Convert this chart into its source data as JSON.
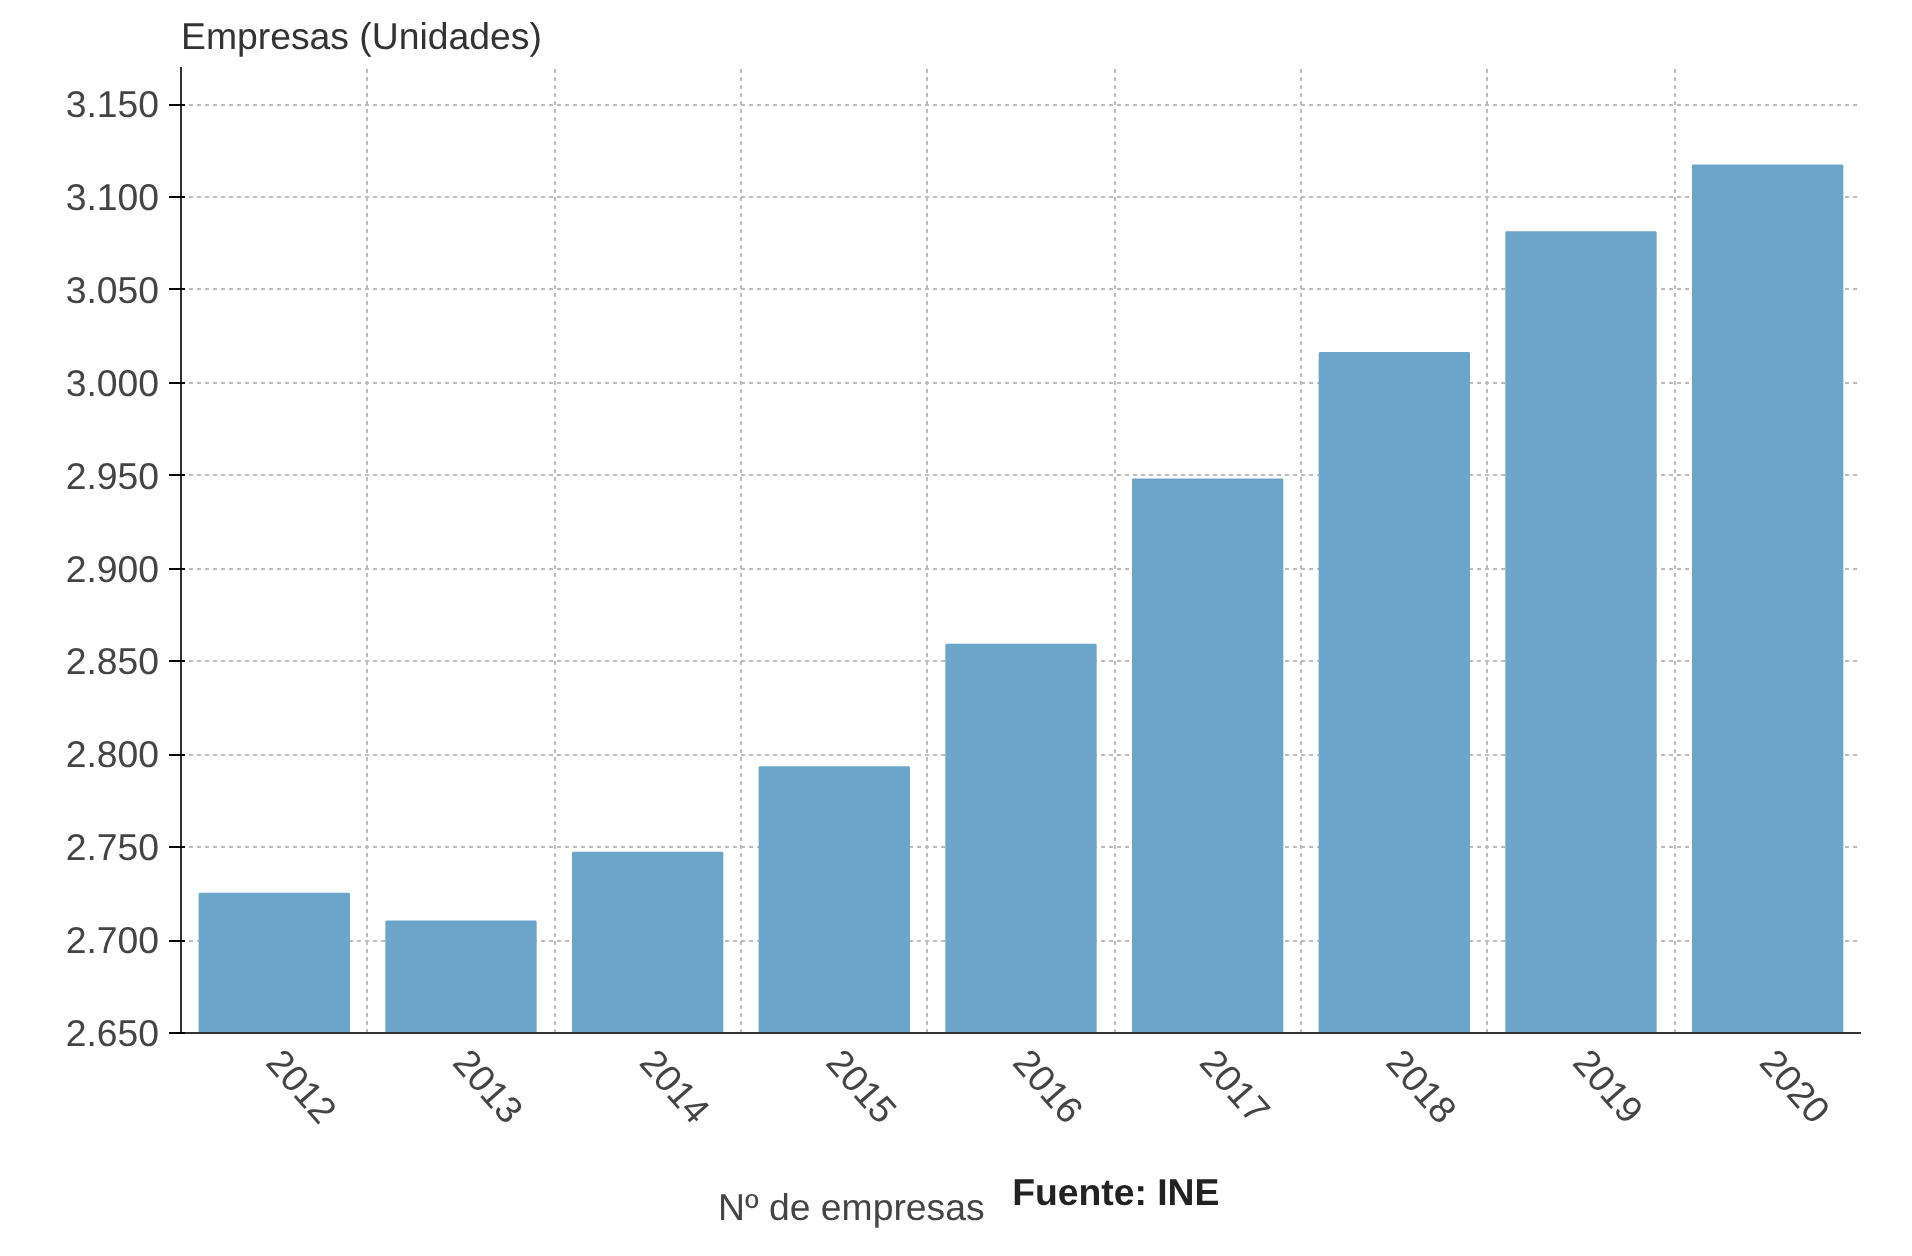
{
  "chart_data": {
    "type": "bar",
    "ylabel": "Empresas (Unidades)",
    "categories": [
      "2012",
      "2013",
      "2014",
      "2015",
      "2016",
      "2017",
      "2018",
      "2019",
      "2020"
    ],
    "series": [
      {
        "name": "Nº de empresas",
        "color": "#6ba5c9",
        "values": [
          2725,
          2710,
          2747,
          2793,
          2859,
          2948,
          3016,
          3081,
          3117
        ]
      }
    ],
    "ylim": [
      2650,
      3170
    ],
    "yticks": [
      {
        "value": 2650,
        "label": "2.650"
      },
      {
        "value": 2700,
        "label": "2.700"
      },
      {
        "value": 2750,
        "label": "2.750"
      },
      {
        "value": 2800,
        "label": "2.800"
      },
      {
        "value": 2850,
        "label": "2.850"
      },
      {
        "value": 2900,
        "label": "2.900"
      },
      {
        "value": 2950,
        "label": "2.950"
      },
      {
        "value": 3000,
        "label": "3.000"
      },
      {
        "value": 3050,
        "label": "3.050"
      },
      {
        "value": 3100,
        "label": "3.100"
      },
      {
        "value": 3150,
        "label": "3.150"
      }
    ],
    "grid": true,
    "legend": "bottom",
    "annotations": [
      "Fuente: INE"
    ]
  }
}
